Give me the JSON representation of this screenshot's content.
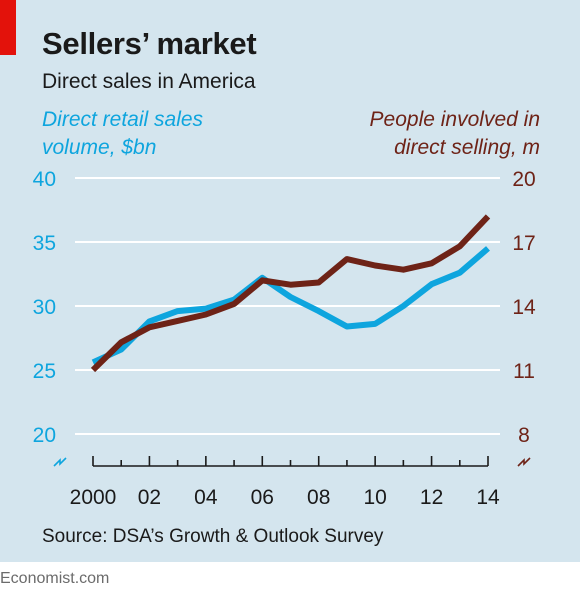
{
  "title": "Sellers’ market",
  "subtitle": "Direct sales in America",
  "source": "Source: DSA’s Growth & Outlook Survey",
  "brand": "Economist.com",
  "colors": {
    "background": "#d4e5ee",
    "accent": "#e3120b",
    "left_series": "#0ea5de",
    "right_series": "#6e2317",
    "axis": "#1a1a1a"
  },
  "chart_data": {
    "type": "line",
    "left_axis_label": [
      "Direct retail sales",
      "volume, $bn"
    ],
    "right_axis_label": [
      "People involved in",
      "direct selling, m"
    ],
    "x": [
      2000,
      2001,
      2002,
      2003,
      2004,
      2005,
      2006,
      2007,
      2008,
      2009,
      2010,
      2011,
      2012,
      2013,
      2014
    ],
    "x_tick_labels": [
      "2000",
      "02",
      "04",
      "06",
      "08",
      "10",
      "12",
      "14"
    ],
    "x_tick_values": [
      2000,
      2002,
      2004,
      2006,
      2008,
      2010,
      2012,
      2014
    ],
    "left_ylim": [
      20,
      40
    ],
    "left_ticks": [
      "20",
      "25",
      "30",
      "35",
      "40"
    ],
    "right_ylim": [
      8,
      20
    ],
    "right_ticks": [
      "8",
      "11",
      "14",
      "17",
      "20"
    ],
    "grid": true,
    "series": [
      {
        "axis": "left",
        "color": "#0ea5de",
        "values": [
          25.6,
          26.6,
          28.8,
          29.6,
          29.8,
          30.5,
          32.2,
          30.7,
          29.6,
          28.4,
          28.6,
          30.0,
          31.7,
          32.6,
          34.5
        ]
      },
      {
        "axis": "right",
        "color": "#6e2317",
        "values": [
          11.0,
          12.3,
          13.0,
          13.3,
          13.6,
          14.1,
          15.2,
          15.0,
          15.1,
          16.2,
          15.9,
          15.7,
          16.0,
          16.8,
          18.2
        ]
      }
    ]
  }
}
